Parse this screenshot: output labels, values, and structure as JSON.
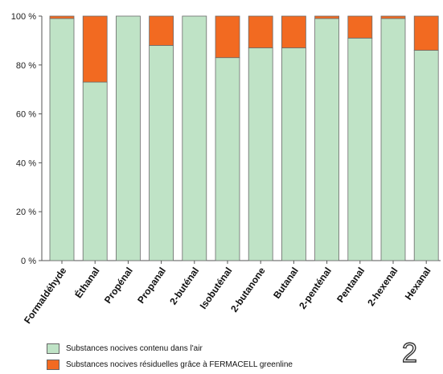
{
  "chart_data": {
    "type": "bar",
    "stacked": true,
    "categories": [
      "Formaldéhyde",
      "Éthanal",
      "Propénal",
      "Propanal",
      "2-buténal",
      "Isobuténal",
      "2-butanone",
      "Butanal",
      "2-penténal",
      "Pentanal",
      "2-hexenal",
      "Hexanal"
    ],
    "series": [
      {
        "name": "Substances nocives contenu dans l'air",
        "values": [
          99,
          73,
          100,
          88,
          100,
          83,
          87,
          87,
          99,
          91,
          99,
          86
        ]
      },
      {
        "name": "Substances nocives résiduelles grâce à FERMACELL greenline",
        "values": [
          1,
          27,
          0,
          12,
          0,
          17,
          13,
          13,
          1,
          9,
          1,
          14
        ]
      }
    ],
    "ylim": [
      0,
      100
    ],
    "yticks": [
      "0 %",
      "20 %",
      "40 %",
      "60 %",
      "80 %",
      "100 %"
    ],
    "grid": false,
    "legend_position": "bottom-left"
  },
  "colors": {
    "green": "#bfe3c6",
    "orange": "#f26a21",
    "axis": "#555555"
  },
  "figure_number": "2"
}
